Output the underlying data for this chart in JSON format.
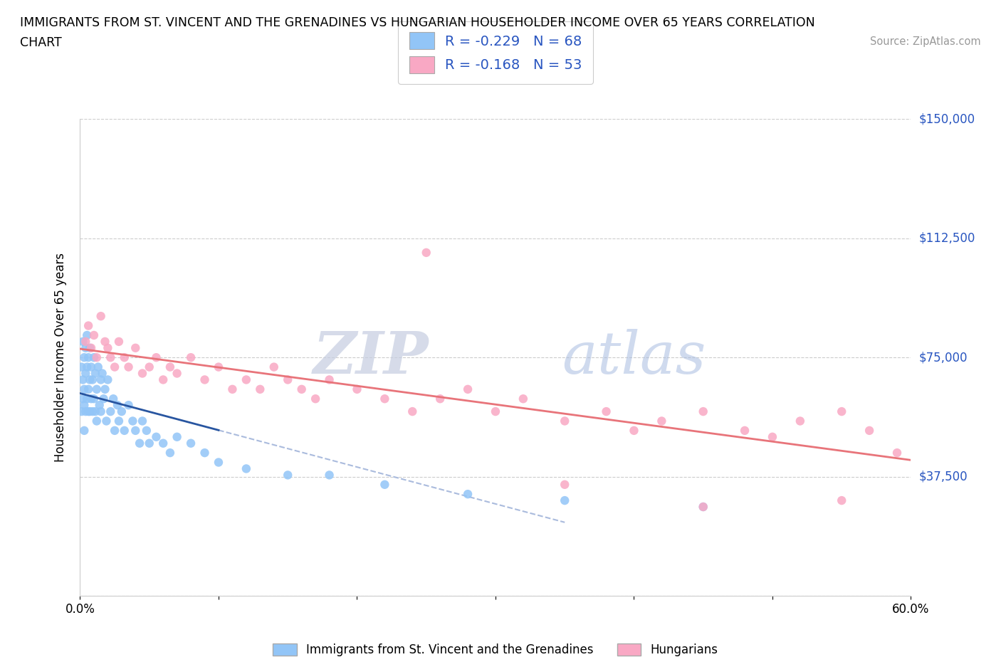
{
  "title_line1": "IMMIGRANTS FROM ST. VINCENT AND THE GRENADINES VS HUNGARIAN HOUSEHOLDER INCOME OVER 65 YEARS CORRELATION",
  "title_line2": "CHART",
  "source_text": "Source: ZipAtlas.com",
  "ylabel": "Householder Income Over 65 years",
  "xmin": 0.0,
  "xmax": 0.6,
  "ymin": 0,
  "ymax": 150000,
  "yticks": [
    0,
    37500,
    75000,
    112500,
    150000
  ],
  "ytick_labels": [
    "",
    "$37,500",
    "$75,000",
    "$112,500",
    "$150,000"
  ],
  "xtick_labels": [
    "0.0%",
    "",
    "",
    "",
    "",
    "",
    "60.0%"
  ],
  "r_blue": -0.229,
  "n_blue": 68,
  "r_pink": -0.168,
  "n_pink": 53,
  "blue_color": "#92C5F7",
  "pink_color": "#F9A8C4",
  "blue_line_color": "#2855A0",
  "pink_line_color": "#E8747A",
  "blue_dash_color": "#AABBDD",
  "watermark_color": "#C8D4E8",
  "background_color": "#FFFFFF",
  "legend_label_blue": "Immigrants from St. Vincent and the Grenadines",
  "legend_label_pink": "Hungarians",
  "blue_scatter_x": [
    0.001,
    0.001,
    0.002,
    0.002,
    0.002,
    0.003,
    0.003,
    0.003,
    0.003,
    0.004,
    0.004,
    0.004,
    0.005,
    0.005,
    0.005,
    0.006,
    0.006,
    0.006,
    0.007,
    0.007,
    0.007,
    0.008,
    0.008,
    0.009,
    0.009,
    0.01,
    0.01,
    0.011,
    0.011,
    0.012,
    0.012,
    0.013,
    0.014,
    0.015,
    0.015,
    0.016,
    0.017,
    0.018,
    0.019,
    0.02,
    0.022,
    0.024,
    0.025,
    0.027,
    0.028,
    0.03,
    0.032,
    0.035,
    0.038,
    0.04,
    0.043,
    0.045,
    0.048,
    0.05,
    0.055,
    0.06,
    0.065,
    0.07,
    0.08,
    0.09,
    0.1,
    0.12,
    0.15,
    0.18,
    0.22,
    0.28,
    0.35,
    0.45
  ],
  "blue_scatter_y": [
    72000,
    58000,
    80000,
    68000,
    62000,
    75000,
    65000,
    60000,
    52000,
    78000,
    70000,
    58000,
    82000,
    72000,
    62000,
    75000,
    65000,
    58000,
    78000,
    68000,
    58000,
    72000,
    62000,
    68000,
    58000,
    75000,
    62000,
    70000,
    58000,
    65000,
    55000,
    72000,
    60000,
    68000,
    58000,
    70000,
    62000,
    65000,
    55000,
    68000,
    58000,
    62000,
    52000,
    60000,
    55000,
    58000,
    52000,
    60000,
    55000,
    52000,
    48000,
    55000,
    52000,
    48000,
    50000,
    48000,
    45000,
    50000,
    48000,
    45000,
    42000,
    40000,
    38000,
    38000,
    35000,
    32000,
    30000,
    28000
  ],
  "pink_scatter_x": [
    0.004,
    0.006,
    0.008,
    0.01,
    0.012,
    0.015,
    0.018,
    0.02,
    0.022,
    0.025,
    0.028,
    0.032,
    0.035,
    0.04,
    0.045,
    0.05,
    0.055,
    0.06,
    0.065,
    0.07,
    0.08,
    0.09,
    0.1,
    0.11,
    0.12,
    0.13,
    0.14,
    0.15,
    0.16,
    0.17,
    0.18,
    0.2,
    0.22,
    0.24,
    0.26,
    0.28,
    0.3,
    0.32,
    0.35,
    0.38,
    0.4,
    0.42,
    0.45,
    0.48,
    0.5,
    0.52,
    0.55,
    0.57,
    0.59,
    0.25,
    0.35,
    0.45,
    0.55
  ],
  "pink_scatter_y": [
    80000,
    85000,
    78000,
    82000,
    75000,
    88000,
    80000,
    78000,
    75000,
    72000,
    80000,
    75000,
    72000,
    78000,
    70000,
    72000,
    75000,
    68000,
    72000,
    70000,
    75000,
    68000,
    72000,
    65000,
    68000,
    65000,
    72000,
    68000,
    65000,
    62000,
    68000,
    65000,
    62000,
    58000,
    62000,
    65000,
    58000,
    62000,
    55000,
    58000,
    52000,
    55000,
    58000,
    52000,
    50000,
    55000,
    58000,
    52000,
    45000,
    108000,
    35000,
    28000,
    30000
  ]
}
